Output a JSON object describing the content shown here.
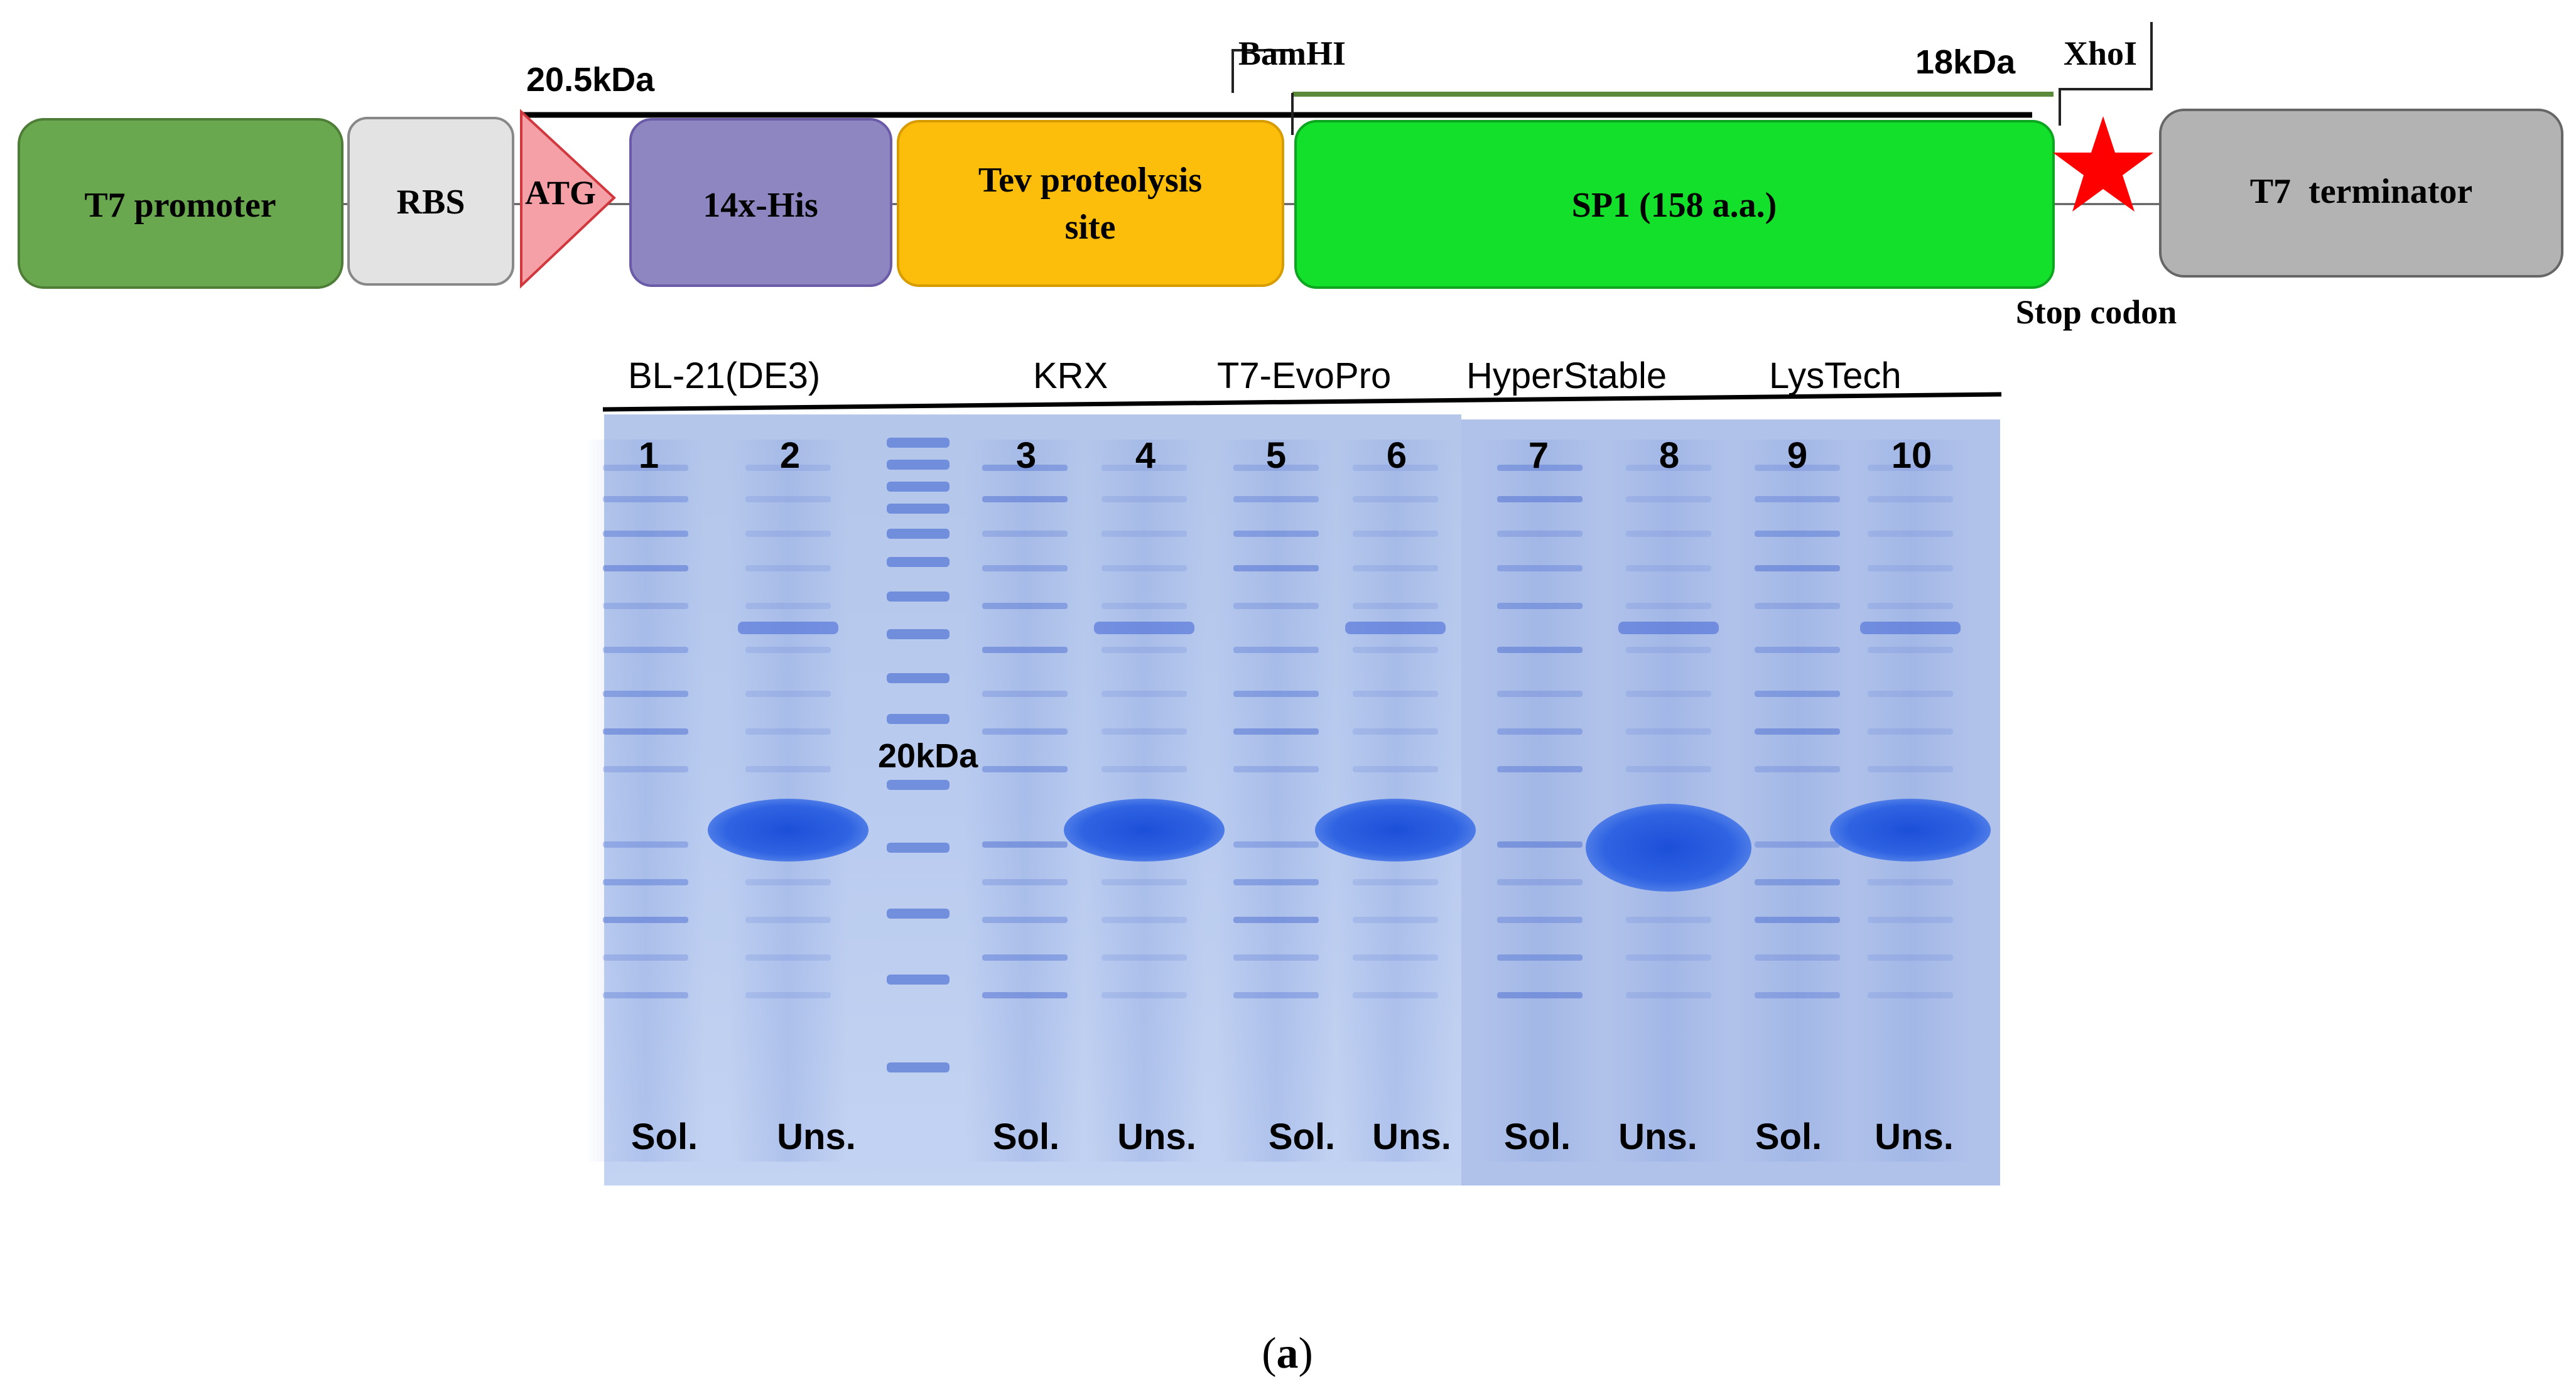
{
  "construct": {
    "elements": {
      "t7_promoter": "T7 promoter",
      "rbs": "RBS",
      "atg": "ATG",
      "his_tag": "14x-His",
      "tev_line1": "Tev proteolysis",
      "tev_line2": "site",
      "sp1": "SP1 (158 a.a.)",
      "t7_terminator": "T7  terminator"
    },
    "sites": {
      "bamhi": "BamHI",
      "xhoi": "XhoI",
      "stop_codon": "Stop codon"
    },
    "sizes": {
      "full_fusion": "20.5kDa",
      "sp1_only": "18kDa"
    },
    "colors": {
      "promoter": "#6aa84f",
      "rbs": "#e3e3e3",
      "atg": "#f4a0a6",
      "his": "#8e86c0",
      "tev": "#fcbd0b",
      "sp1": "#12e02a",
      "terminator": "#b3b3b3",
      "stop_star": "#ff0000",
      "size_bar_18": "#5a8a3a"
    }
  },
  "gel": {
    "strains": [
      "BL-21(DE3)",
      "KRX",
      "T7-EvoPro",
      "HyperStable",
      "LysTech"
    ],
    "lanes": [
      "1",
      "2",
      "3",
      "4",
      "5",
      "6",
      "7",
      "8",
      "9",
      "10"
    ],
    "fractions": [
      "Sol.",
      "Uns.",
      "Sol.",
      "Uns.",
      "Sol.",
      "Uns.",
      "Sol.",
      "Uns.",
      "Sol.",
      "Uns."
    ],
    "marker_label": "20kDa"
  },
  "caption": {
    "open": "(",
    "letter": "a",
    "close": ")"
  }
}
